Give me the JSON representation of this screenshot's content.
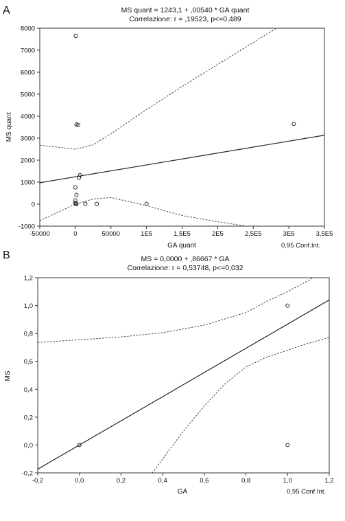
{
  "chart_data": [
    {
      "panel_letter": "A",
      "type": "scatter",
      "title": "MS quant = 1243,1 + ,00540 * GA quant",
      "subtitle": "Correlazione:  r = ,19523,  p<=0,489",
      "xlabel": "GA quant",
      "ylabel": "MS quant",
      "legend_note": "0,95 Conf.Int.",
      "xlim": [
        -50000,
        350000
      ],
      "ylim": [
        -1000,
        8000
      ],
      "x_ticks": [
        -50000,
        0,
        50000,
        100000,
        150000,
        200000,
        250000,
        300000,
        350000
      ],
      "x_tick_labels": [
        "-50000",
        "0",
        "50000",
        "1E5",
        "1,5E5",
        "2E5",
        "2,5E5",
        "3E5",
        "3,5E5"
      ],
      "y_ticks": [
        -1000,
        0,
        1000,
        2000,
        3000,
        4000,
        5000,
        6000,
        7000,
        8000
      ],
      "y_tick_labels": [
        "-1000",
        "0",
        "1000",
        "2000",
        "3000",
        "4000",
        "5000",
        "6000",
        "7000",
        "8000"
      ],
      "grid": false,
      "regression": {
        "intercept": 1243.1,
        "slope": 0.0054
      },
      "points": [
        {
          "x": 500,
          "y": 7650
        },
        {
          "x": 1500,
          "y": 3620
        },
        {
          "x": 4000,
          "y": 3600
        },
        {
          "x": 6500,
          "y": 1320
        },
        {
          "x": 5000,
          "y": 1200
        },
        {
          "x": 0,
          "y": 760
        },
        {
          "x": 1500,
          "y": 420
        },
        {
          "x": 0,
          "y": 170
        },
        {
          "x": 0,
          "y": 60
        },
        {
          "x": 500,
          "y": 10
        },
        {
          "x": 1500,
          "y": 0
        },
        {
          "x": 14000,
          "y": 10
        },
        {
          "x": 30000,
          "y": 10
        },
        {
          "x": 100000,
          "y": 10
        },
        {
          "x": 307000,
          "y": 3650
        }
      ],
      "ci_upper": [
        {
          "x": -50000,
          "y": 2680
        },
        {
          "x": 0,
          "y": 2500
        },
        {
          "x": 25000,
          "y": 2700
        },
        {
          "x": 50000,
          "y": 3200
        },
        {
          "x": 100000,
          "y": 4300
        },
        {
          "x": 150000,
          "y": 5350
        },
        {
          "x": 200000,
          "y": 6350
        },
        {
          "x": 250000,
          "y": 7350
        },
        {
          "x": 300000,
          "y": 8350
        },
        {
          "x": 350000,
          "y": 9350
        }
      ],
      "ci_lower": [
        {
          "x": -50000,
          "y": -750
        },
        {
          "x": 0,
          "y": 0
        },
        {
          "x": 25000,
          "y": 230
        },
        {
          "x": 50000,
          "y": 300
        },
        {
          "x": 100000,
          "y": -70
        },
        {
          "x": 150000,
          "y": -520
        },
        {
          "x": 200000,
          "y": -800
        },
        {
          "x": 250000,
          "y": -1050
        },
        {
          "x": 300000,
          "y": -1300
        },
        {
          "x": 350000,
          "y": -1550
        }
      ]
    },
    {
      "panel_letter": "B",
      "type": "scatter",
      "title": "MS = 0,0000 + ,86667 * GA",
      "subtitle": "Correlazione:  r = 0,53748,  p<=0,032",
      "xlabel": "GA",
      "ylabel": "MS",
      "legend_note": "0,95 Conf.Int.",
      "xlim": [
        -0.2,
        1.2
      ],
      "ylim": [
        -0.2,
        1.2
      ],
      "x_ticks": [
        -0.2,
        0,
        0.2,
        0.4,
        0.6,
        0.8,
        1.0,
        1.2
      ],
      "x_tick_labels": [
        "-0,2",
        "0,0",
        "0,2",
        "0,4",
        "0,6",
        "0,8",
        "1,0",
        "1,2"
      ],
      "y_ticks": [
        -0.2,
        0,
        0.2,
        0.4,
        0.6,
        0.8,
        1.0,
        1.2
      ],
      "y_tick_labels": [
        "-0,2",
        "0,0",
        "0,2",
        "0,4",
        "0,6",
        "0,8",
        "1,0",
        "1,2"
      ],
      "grid": false,
      "regression": {
        "intercept": 0.0,
        "slope": 0.86667
      },
      "points": [
        {
          "x": 0,
          "y": 0
        },
        {
          "x": 1,
          "y": 1
        },
        {
          "x": 1,
          "y": 0
        }
      ],
      "ci_upper": [
        {
          "x": -0.2,
          "y": 0.735
        },
        {
          "x": 0,
          "y": 0.755
        },
        {
          "x": 0.2,
          "y": 0.775
        },
        {
          "x": 0.4,
          "y": 0.805
        },
        {
          "x": 0.6,
          "y": 0.86
        },
        {
          "x": 0.8,
          "y": 0.95
        },
        {
          "x": 0.9,
          "y": 1.03
        },
        {
          "x": 1.0,
          "y": 1.1
        },
        {
          "x": 1.1,
          "y": 1.18
        },
        {
          "x": 1.12,
          "y": 1.2
        }
      ],
      "ci_lower": [
        {
          "x": 0.35,
          "y": -0.2
        },
        {
          "x": 0.5,
          "y": 0.1
        },
        {
          "x": 0.6,
          "y": 0.28
        },
        {
          "x": 0.7,
          "y": 0.44
        },
        {
          "x": 0.8,
          "y": 0.56
        },
        {
          "x": 0.9,
          "y": 0.63
        },
        {
          "x": 1.0,
          "y": 0.68
        },
        {
          "x": 1.1,
          "y": 0.73
        },
        {
          "x": 1.2,
          "y": 0.77
        }
      ]
    }
  ]
}
